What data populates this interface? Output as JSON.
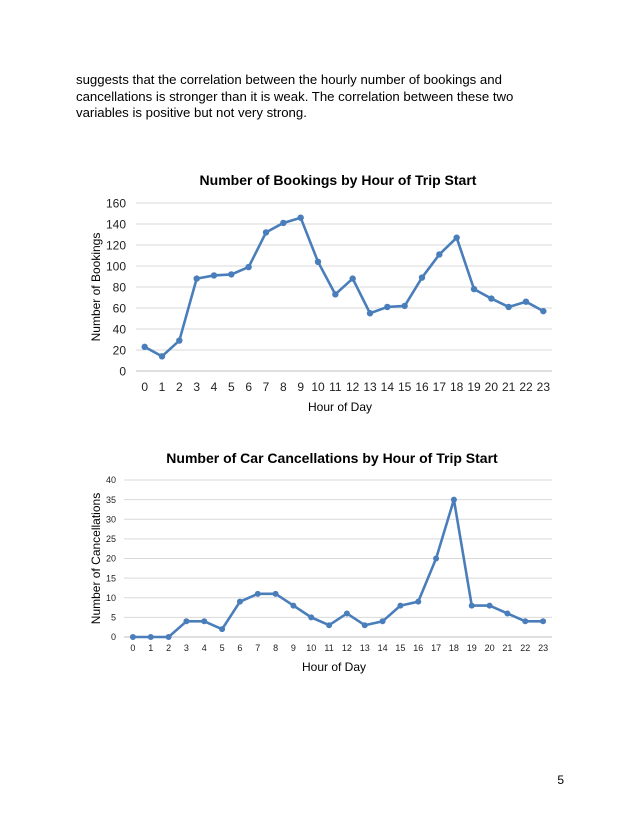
{
  "paragraph": "suggests that the correlation between the hourly number of bookings and cancellations is stronger than it is weak. The correlation between these two variables is positive but not very strong.",
  "page_number": "5",
  "chart_data": [
    {
      "type": "line",
      "title": "Number of Bookings by Hour of Trip Start",
      "xlabel": "Hour of Day",
      "ylabel": "Number of Bookings",
      "categories": [
        "0",
        "1",
        "2",
        "3",
        "4",
        "5",
        "6",
        "7",
        "8",
        "9",
        "10",
        "11",
        "12",
        "13",
        "14",
        "15",
        "16",
        "17",
        "18",
        "19",
        "20",
        "21",
        "22",
        "23"
      ],
      "series": [
        {
          "values": [
            23,
            14,
            29,
            88,
            91,
            92,
            99,
            132,
            141,
            146,
            104,
            73,
            88,
            55,
            61,
            62,
            89,
            111,
            127,
            78,
            69,
            61,
            66,
            57
          ]
        }
      ],
      "ylim": [
        0,
        160
      ],
      "yticks": [
        0,
        20,
        40,
        60,
        80,
        100,
        120,
        140,
        160
      ],
      "grid": true,
      "line_color": "#4a7ebb"
    },
    {
      "type": "line",
      "title": "Number of Car Cancellations by Hour of Trip Start",
      "xlabel": "Hour of Day",
      "ylabel": "Number of Cancellations",
      "categories": [
        "0",
        "1",
        "2",
        "3",
        "4",
        "5",
        "6",
        "7",
        "8",
        "9",
        "10",
        "11",
        "12",
        "13",
        "14",
        "15",
        "16",
        "17",
        "18",
        "19",
        "20",
        "21",
        "22",
        "23"
      ],
      "series": [
        {
          "values": [
            0,
            0,
            0,
            4,
            4,
            2,
            9,
            11,
            11,
            8,
            5,
            3,
            6,
            3,
            4,
            8,
            9,
            20,
            35,
            8,
            8,
            6,
            4,
            4
          ]
        }
      ],
      "ylim": [
        0,
        40
      ],
      "yticks": [
        0,
        5,
        10,
        15,
        20,
        25,
        30,
        35,
        40
      ],
      "grid": true,
      "line_color": "#4a7ebb"
    }
  ]
}
